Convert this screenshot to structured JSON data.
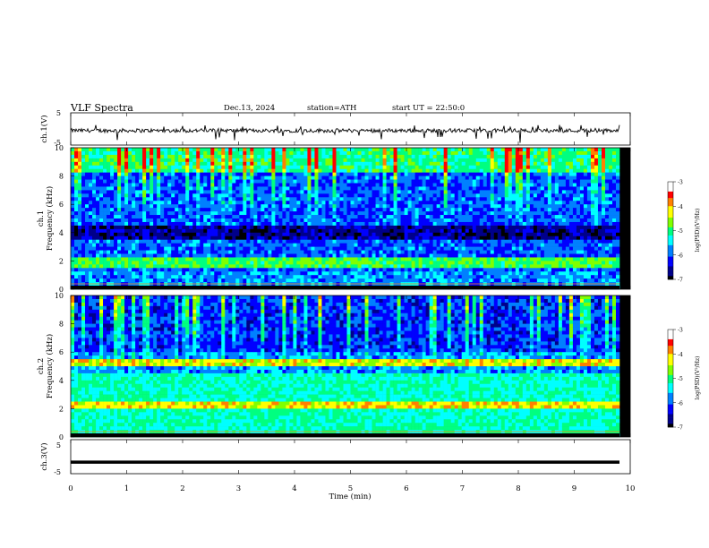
{
  "header": {
    "title": "VLF Spectra",
    "date": "Dec.13, 2024",
    "station": "station=ATH",
    "start": "start UT = 22:50:0"
  },
  "chart_data": [
    {
      "type": "line",
      "ylabel": "ch.1(V)",
      "ylim": [
        -5,
        5
      ],
      "yticks": [
        "5",
        "-5"
      ],
      "series_color": "#000000",
      "description_level": "noisy trace near -0.5 V with negative spikes"
    },
    {
      "type": "heatmap",
      "ylabel_line1": "ch.1",
      "ylabel_line2": "Frequency (kHz)",
      "ylim": [
        0,
        10
      ],
      "yticks": [
        "0",
        "2",
        "4",
        "6",
        "8",
        "10"
      ],
      "colorbar": {
        "label": "log(PSD)(V²/Hz)",
        "range": [
          -7,
          -3
        ],
        "ticks": [
          "-3",
          "-4",
          "-5",
          "-6",
          "-7"
        ]
      },
      "colormap": [
        "#000000",
        "#00008b",
        "#0000ff",
        "#0080ff",
        "#00ffff",
        "#00ff80",
        "#80ff00",
        "#ffff00",
        "#ff8000",
        "#ff0000"
      ]
    },
    {
      "type": "heatmap",
      "ylabel_line1": "ch.2",
      "ylabel_line2": "Frequency (kHz)",
      "ylim": [
        0,
        10
      ],
      "yticks": [
        "0",
        "2",
        "4",
        "6",
        "8",
        "10"
      ],
      "colorbar": {
        "label": "log(PSD)(V²/Hz)",
        "range": [
          -7,
          -3
        ],
        "ticks": [
          "-3",
          "-4",
          "-5",
          "-6",
          "-7"
        ]
      }
    },
    {
      "type": "line",
      "ylabel": "ch.3(V)",
      "ylim": [
        -5,
        5
      ],
      "yticks": [
        "5",
        "-5"
      ],
      "value_level": -1.6
    }
  ],
  "xaxis": {
    "label": "Time (min)",
    "xlim": [
      0,
      10
    ],
    "ticks": [
      "0",
      "1",
      "2",
      "3",
      "4",
      "5",
      "6",
      "7",
      "8",
      "9",
      "10"
    ]
  }
}
